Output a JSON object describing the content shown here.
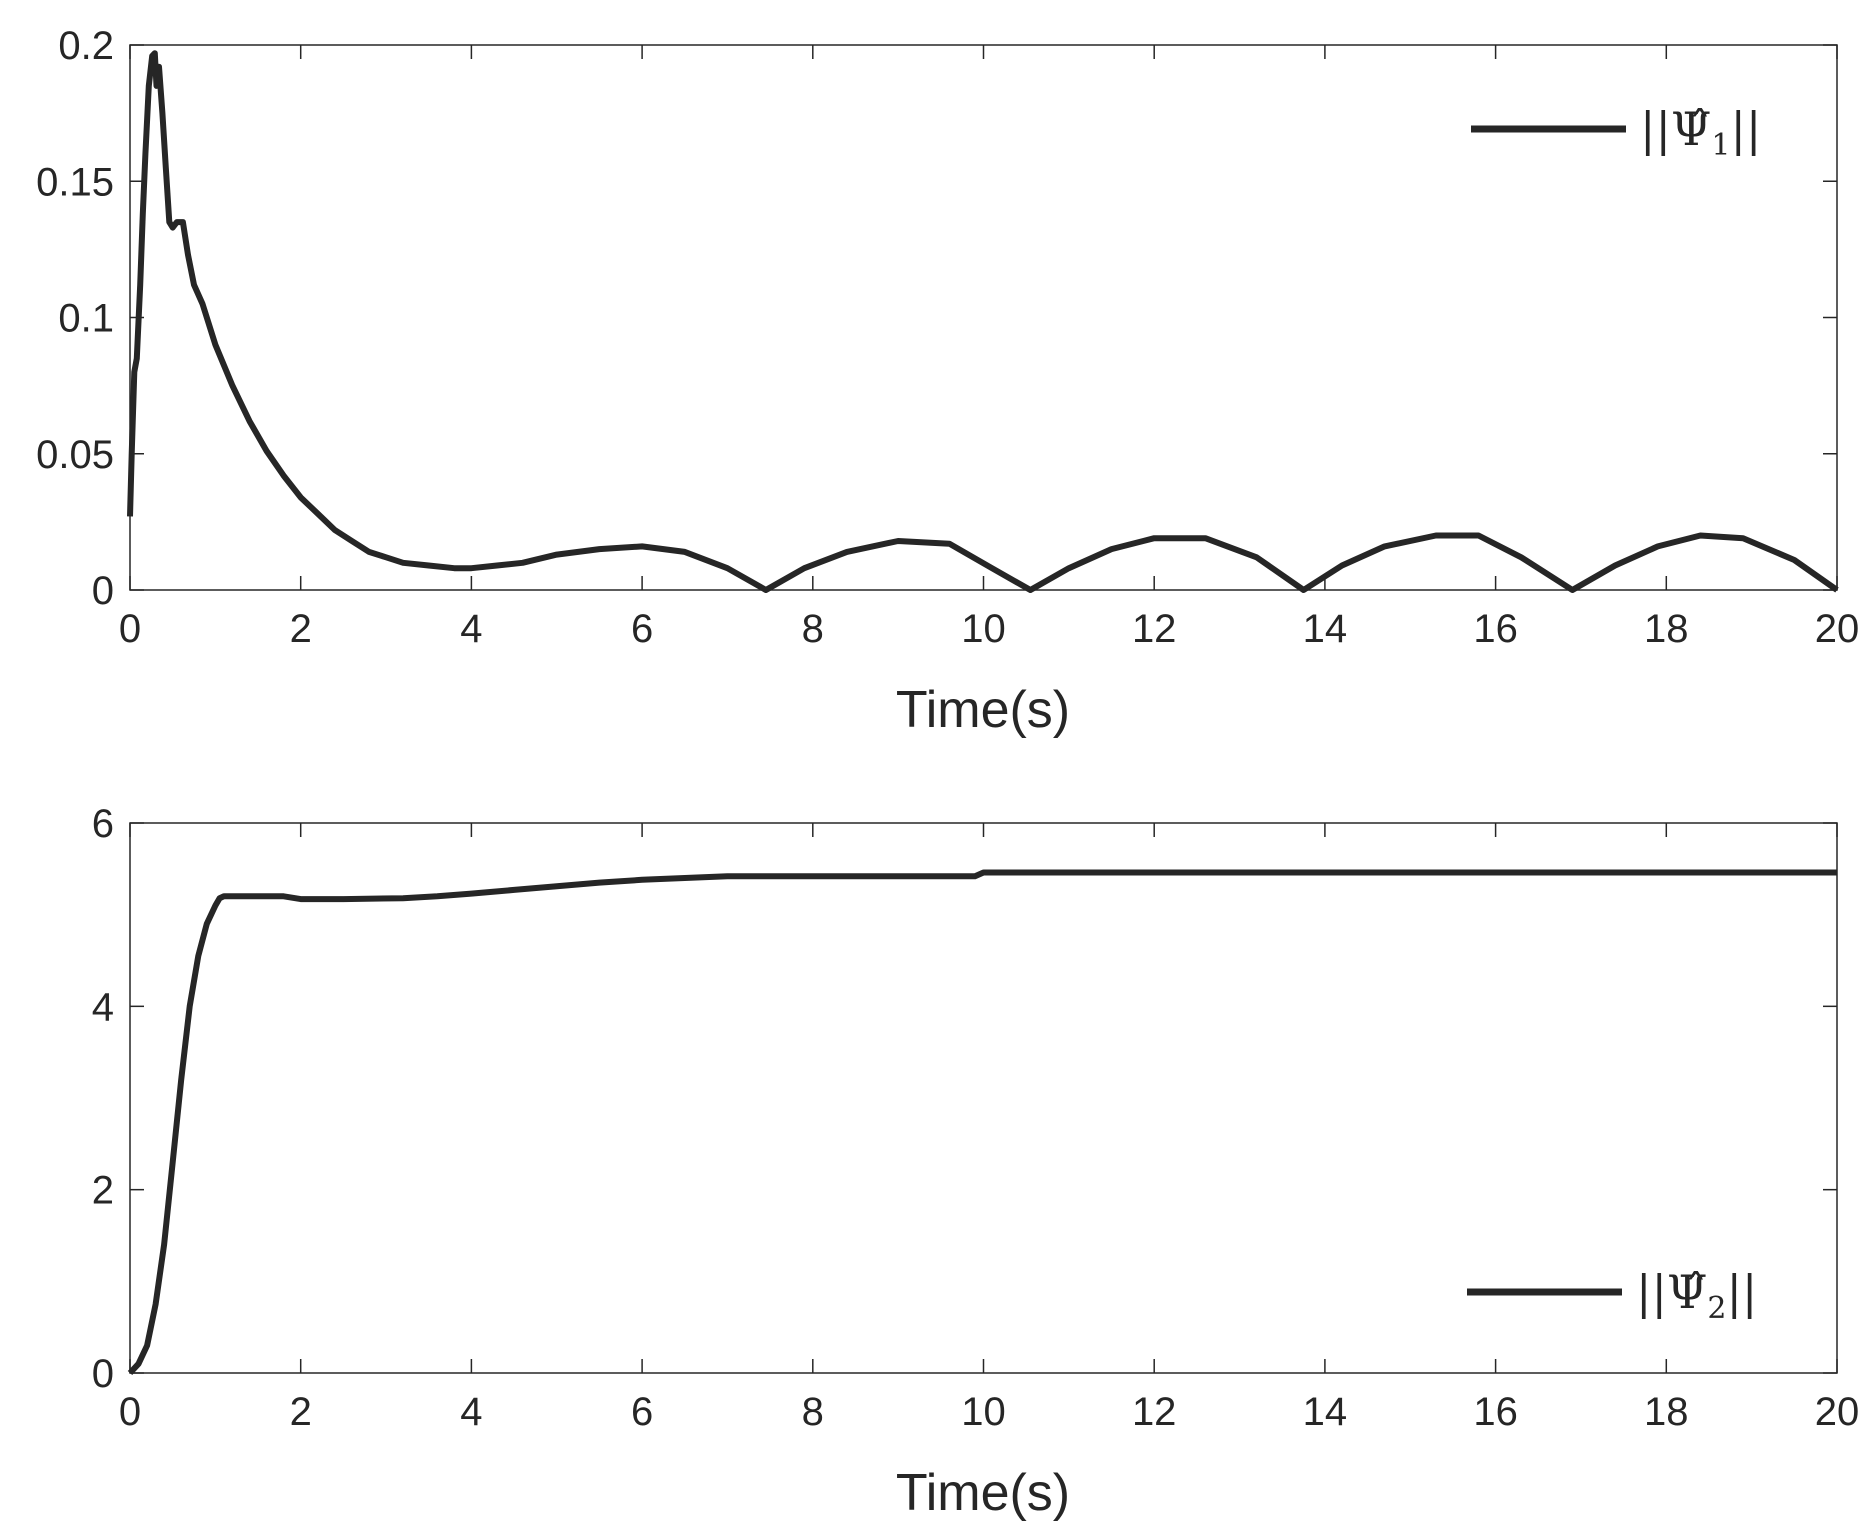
{
  "chart_data": [
    {
      "type": "line",
      "title": "",
      "xlabel": "Time(s)",
      "ylabel": "",
      "xlim": [
        0,
        20
      ],
      "ylim": [
        0,
        0.2
      ],
      "xticks": [
        "0",
        "2",
        "4",
        "6",
        "8",
        "10",
        "12",
        "14",
        "16",
        "18",
        "20"
      ],
      "yticks": [
        "0",
        "0.05",
        "0.1",
        "0.15",
        "0.2"
      ],
      "grid": false,
      "legend_position": "top-right",
      "line_color": "#262626",
      "series": [
        {
          "name": "||Ψ̂1||",
          "legend_base": "||Ψ̂",
          "legend_sub": "1",
          "legend_tail": "||",
          "x": [
            0,
            0.02,
            0.05,
            0.08,
            0.12,
            0.15,
            0.18,
            0.22,
            0.26,
            0.29,
            0.31,
            0.34,
            0.38,
            0.42,
            0.46,
            0.5,
            0.55,
            0.62,
            0.68,
            0.75,
            0.85,
            1.0,
            1.2,
            1.4,
            1.6,
            1.8,
            2.0,
            2.2,
            2.4,
            2.6,
            2.8,
            3.0,
            3.2,
            3.5,
            3.8,
            4.0,
            4.3,
            4.6,
            5.0,
            5.5,
            6.0,
            6.5,
            7.0,
            7.45,
            7.9,
            8.4,
            9.0,
            9.6,
            10.1,
            10.55,
            11.0,
            11.5,
            12.0,
            12.6,
            13.2,
            13.75,
            14.2,
            14.7,
            15.3,
            15.8,
            16.3,
            16.9,
            17.4,
            17.9,
            18.4,
            18.9,
            19.5,
            20.0
          ],
          "y": [
            0.027,
            0.05,
            0.08,
            0.085,
            0.112,
            0.138,
            0.16,
            0.185,
            0.196,
            0.197,
            0.185,
            0.192,
            0.175,
            0.155,
            0.135,
            0.133,
            0.135,
            0.135,
            0.123,
            0.112,
            0.105,
            0.09,
            0.075,
            0.062,
            0.051,
            0.042,
            0.034,
            0.028,
            0.022,
            0.018,
            0.014,
            0.012,
            0.01,
            0.009,
            0.008,
            0.008,
            0.009,
            0.01,
            0.013,
            0.015,
            0.016,
            0.014,
            0.008,
            0.0,
            0.008,
            0.014,
            0.018,
            0.017,
            0.008,
            0.0,
            0.008,
            0.015,
            0.019,
            0.019,
            0.012,
            0.0,
            0.009,
            0.016,
            0.02,
            0.02,
            0.012,
            0.0,
            0.009,
            0.016,
            0.02,
            0.019,
            0.011,
            0.0
          ]
        }
      ]
    },
    {
      "type": "line",
      "title": "",
      "xlabel": "Time(s)",
      "ylabel": "",
      "xlim": [
        0,
        20
      ],
      "ylim": [
        0,
        6
      ],
      "xticks": [
        "0",
        "2",
        "4",
        "6",
        "8",
        "10",
        "12",
        "14",
        "16",
        "18",
        "20"
      ],
      "yticks": [
        "0",
        "2",
        "4",
        "6"
      ],
      "grid": false,
      "legend_position": "bottom-right",
      "line_color": "#262626",
      "series": [
        {
          "name": "||Ψ̂2||",
          "legend_base": "||Ψ̂",
          "legend_sub": "2",
          "legend_tail": "||",
          "x": [
            0,
            0.1,
            0.2,
            0.3,
            0.4,
            0.5,
            0.6,
            0.7,
            0.8,
            0.9,
            1.0,
            1.05,
            1.1,
            1.4,
            1.8,
            2.0,
            2.5,
            3.2,
            3.6,
            4.0,
            4.5,
            5.0,
            5.5,
            6.0,
            6.5,
            7.0,
            8.0,
            9.0,
            9.9,
            10.0,
            12.0,
            14.0,
            16.0,
            18.0,
            20.0
          ],
          "y": [
            0,
            0.1,
            0.3,
            0.75,
            1.4,
            2.3,
            3.2,
            4.0,
            4.55,
            4.9,
            5.1,
            5.18,
            5.2,
            5.2,
            5.2,
            5.17,
            5.17,
            5.18,
            5.2,
            5.23,
            5.27,
            5.31,
            5.35,
            5.38,
            5.4,
            5.42,
            5.42,
            5.42,
            5.42,
            5.46,
            5.46,
            5.46,
            5.46,
            5.46,
            5.46
          ]
        }
      ]
    }
  ]
}
